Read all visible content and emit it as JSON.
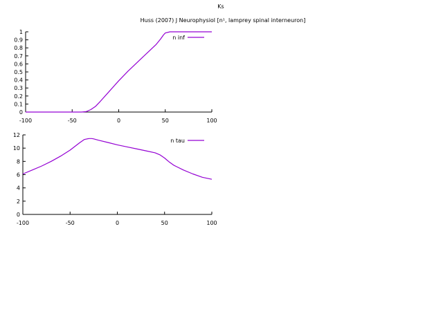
{
  "page": {
    "title": "Ks",
    "subtitle": "Huss (2007) J Neurophysiol [n¹, lamprey spinal interneuron]"
  },
  "chart_data": [
    {
      "type": "line",
      "series": [
        {
          "name": "n inf",
          "color": "#9400d3",
          "x": [
            -100,
            -60,
            -40,
            -35,
            -30,
            -25,
            -20,
            -10,
            0,
            10,
            20,
            30,
            40,
            45,
            48,
            50,
            55,
            60,
            80,
            100
          ],
          "values": [
            0,
            0,
            0,
            0.005,
            0.03,
            0.07,
            0.13,
            0.26,
            0.39,
            0.51,
            0.62,
            0.73,
            0.84,
            0.91,
            0.96,
            0.985,
            1.0,
            1.0,
            1.0,
            1.0
          ]
        }
      ],
      "xlim": [
        -100,
        100
      ],
      "ylim": [
        0,
        1
      ],
      "xticks": [
        "-100",
        "-50",
        "0",
        "50",
        "100"
      ],
      "yticks": [
        "0",
        "0.1",
        "0.2",
        "0.3",
        "0.4",
        "0.5",
        "0.6",
        "0.7",
        "0.8",
        "0.9",
        "1"
      ],
      "legend_position": "top-right",
      "grid": false
    },
    {
      "type": "line",
      "series": [
        {
          "name": "n tau",
          "color": "#9400d3",
          "x": [
            -100,
            -90,
            -80,
            -70,
            -60,
            -50,
            -40,
            -35,
            -30,
            -27,
            -25,
            -20,
            -10,
            0,
            10,
            20,
            30,
            40,
            45,
            50,
            55,
            60,
            70,
            80,
            90,
            100
          ],
          "values": [
            6.1,
            6.7,
            7.3,
            8.0,
            8.8,
            9.7,
            10.8,
            11.3,
            11.45,
            11.45,
            11.4,
            11.2,
            10.85,
            10.5,
            10.2,
            9.9,
            9.6,
            9.3,
            9.0,
            8.5,
            7.9,
            7.4,
            6.7,
            6.1,
            5.6,
            5.3
          ]
        }
      ],
      "xlim": [
        -100,
        100
      ],
      "ylim": [
        0,
        12
      ],
      "xticks": [
        "-100",
        "-50",
        "0",
        "50",
        "100"
      ],
      "yticks": [
        "0",
        "2",
        "4",
        "6",
        "8",
        "10",
        "12"
      ],
      "legend_position": "top-right",
      "grid": false
    }
  ]
}
